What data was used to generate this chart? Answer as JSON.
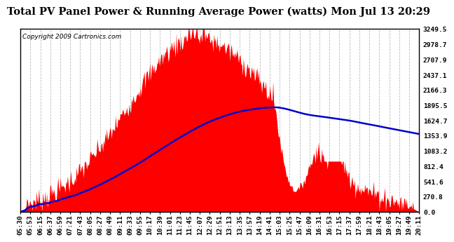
{
  "title": "Total PV Panel Power & Running Average Power (watts) Mon Jul 13 20:29",
  "copyright": "Copyright 2009 Cartronics.com",
  "ytick_labels": [
    0.0,
    270.8,
    541.6,
    812.4,
    1083.2,
    1353.9,
    1624.7,
    1895.5,
    2166.3,
    2437.1,
    2707.9,
    2978.7,
    3249.5
  ],
  "ymax": 3249.5,
  "ymin": 0.0,
  "fill_color": "#FF0000",
  "line_color": "#0000CC",
  "background_color": "#FFFFFF",
  "plot_bg_color": "#FFFFFF",
  "grid_color": "#BBBBBB",
  "title_fontsize": 10.5,
  "copyright_fontsize": 6.5,
  "tick_fontsize": 6.8,
  "num_points": 500,
  "xtick_labels": [
    "05:30",
    "05:53",
    "06:15",
    "06:37",
    "06:59",
    "07:21",
    "07:43",
    "08:05",
    "08:27",
    "08:49",
    "09:11",
    "09:33",
    "09:55",
    "10:17",
    "10:39",
    "11:01",
    "11:23",
    "11:45",
    "12:07",
    "12:29",
    "12:51",
    "13:13",
    "13:35",
    "13:57",
    "14:19",
    "14:41",
    "15:03",
    "15:25",
    "15:47",
    "16:09",
    "16:31",
    "16:53",
    "17:15",
    "17:37",
    "17:59",
    "18:21",
    "18:43",
    "19:05",
    "19:27",
    "19:49",
    "20:11"
  ]
}
